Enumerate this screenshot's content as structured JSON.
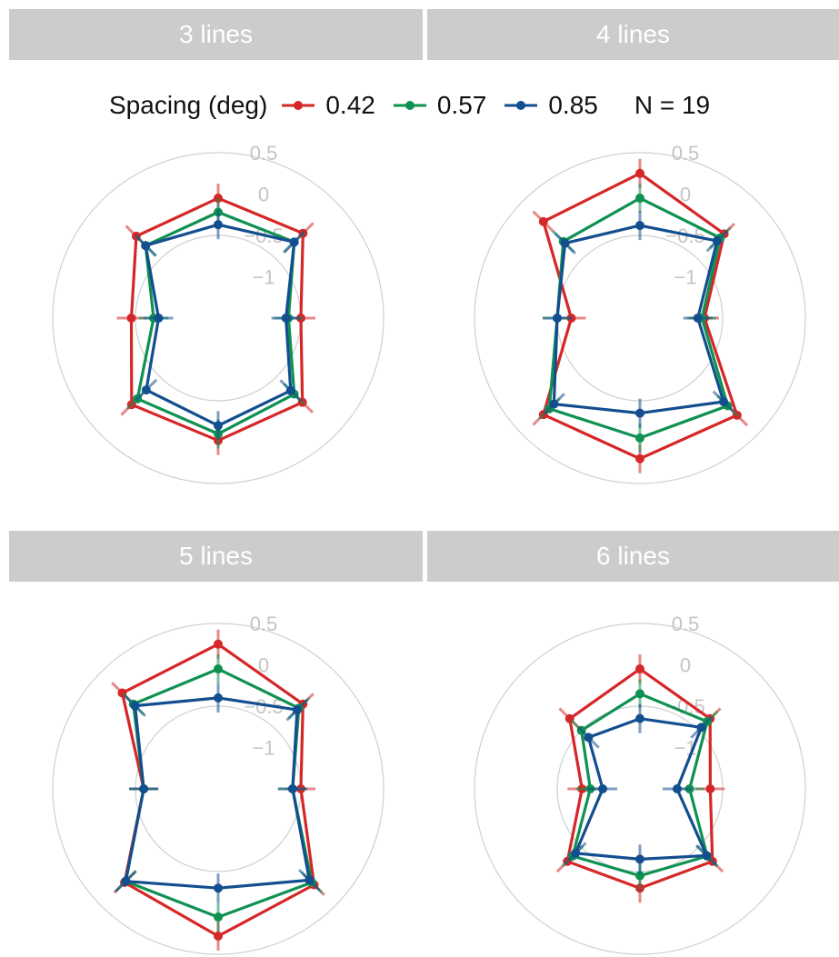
{
  "legend": {
    "title": "Spacing (deg)",
    "entries": [
      "0.42",
      "0.57",
      "0.85"
    ],
    "n_label": "N = 19"
  },
  "colors": {
    "0.42": "#d62728",
    "0.57": "#0f9152",
    "0.85": "#134e8f",
    "grid": "#d0d0d0",
    "strip": "#cccccc"
  },
  "chart_data": {
    "type": "radar",
    "directions": 8,
    "ring_labels": [
      "0.5",
      "0",
      "-0.5",
      "-1"
    ],
    "rlim": [
      -1.5,
      0.5
    ],
    "grid": true,
    "legend_position": "top",
    "panels": [
      {
        "title": "3 lines",
        "series": [
          {
            "name": "0.42",
            "values": [
              -0.05,
              -0.05,
              -0.5,
              -0.06,
              -0.02,
              -0.02,
              -0.45,
              -0.1
            ]
          },
          {
            "name": "0.57",
            "values": [
              -0.22,
              -0.2,
              -0.65,
              -0.2,
              -0.1,
              -0.12,
              -0.72,
              -0.26
            ]
          },
          {
            "name": "0.85",
            "values": [
              -0.37,
              -0.2,
              -0.68,
              -0.26,
              -0.2,
              -0.27,
              -0.78,
              -0.26
            ]
          }
        ]
      },
      {
        "title": "4 lines",
        "series": [
          {
            "name": "0.42",
            "values": [
              0.25,
              -0.06,
              -0.72,
              0.16,
              0.2,
              0.15,
              -0.67,
              0.15
            ]
          },
          {
            "name": "0.57",
            "values": [
              -0.05,
              -0.13,
              -0.75,
              0.0,
              -0.05,
              0.05,
              -0.5,
              -0.19
            ]
          },
          {
            "name": "0.85",
            "values": [
              -0.38,
              -0.18,
              -0.8,
              -0.07,
              -0.35,
              -0.03,
              -0.5,
              -0.22
            ]
          }
        ]
      },
      {
        "title": "5 lines",
        "series": [
          {
            "name": "0.42",
            "values": [
              0.25,
              -0.05,
              -0.5,
              0.14,
              0.28,
              0.1,
              -0.6,
              0.14
            ]
          },
          {
            "name": "0.57",
            "values": [
              -0.05,
              -0.12,
              -0.6,
              0.1,
              0.05,
              0.08,
              -0.6,
              -0.05
            ]
          },
          {
            "name": "0.85",
            "values": [
              -0.4,
              -0.15,
              -0.6,
              0.06,
              -0.3,
              0.08,
              -0.6,
              -0.08
            ]
          }
        ]
      },
      {
        "title": "6 lines",
        "series": [
          {
            "name": "0.42",
            "values": [
              -0.05,
              -0.3,
              -0.65,
              -0.26,
              -0.3,
              -0.26,
              -0.8,
              -0.3
            ]
          },
          {
            "name": "0.57",
            "values": [
              -0.35,
              -0.35,
              -0.9,
              -0.35,
              -0.45,
              -0.35,
              -0.9,
              -0.5
            ]
          },
          {
            "name": "0.85",
            "values": [
              -0.65,
              -0.45,
              -1.05,
              -0.36,
              -0.65,
              -0.4,
              -1.05,
              -0.62
            ]
          }
        ]
      }
    ]
  }
}
